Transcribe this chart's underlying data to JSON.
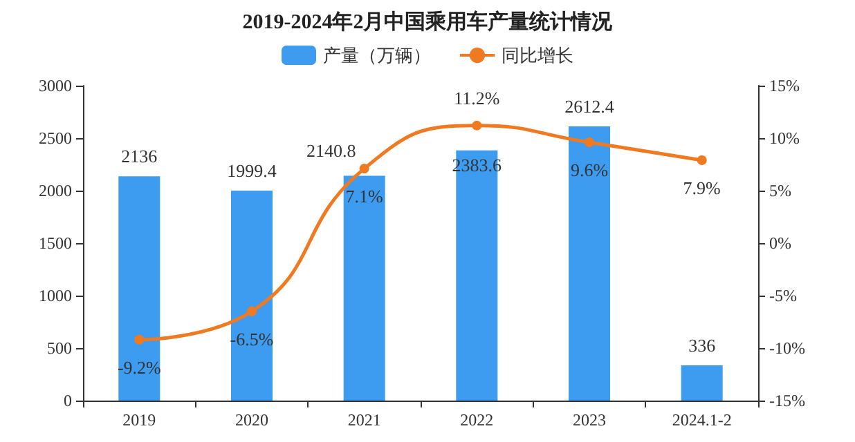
{
  "chart_data": {
    "type": "bar",
    "title": "2019-2024年2月中国乘用车产量统计情况",
    "categories": [
      "2019",
      "2020",
      "2021",
      "2022",
      "2023",
      "2024.1-2"
    ],
    "series": [
      {
        "name": "产量（万辆）",
        "color": "#3d9cf0",
        "values": [
          2136,
          1999.4,
          2140.8,
          2383.6,
          2612.4,
          336
        ],
        "value_labels": [
          "2136",
          "1999.4",
          "2140.8",
          "2383.6",
          "2612.4",
          "336"
        ]
      },
      {
        "name": "同比增长",
        "type": "line",
        "axis": "y2",
        "color": "#f07a21",
        "values": [
          -9.2,
          -6.5,
          7.1,
          11.2,
          9.6,
          7.9
        ],
        "value_labels": [
          "-9.2%",
          "-6.5%",
          "7.1%",
          "11.2%",
          "9.6%",
          "7.9%"
        ]
      }
    ],
    "ylim": [
      0,
      3000
    ],
    "yticks": [
      0,
      500,
      1000,
      1500,
      2000,
      2500,
      3000
    ],
    "y2lim": [
      -15,
      15
    ],
    "y2ticks": [
      {
        "value": -15,
        "label": "-15%"
      },
      {
        "value": -10,
        "label": "-10%"
      },
      {
        "value": -5,
        "label": "-5%"
      },
      {
        "value": 0,
        "label": "0%"
      },
      {
        "value": 5,
        "label": "5%"
      },
      {
        "value": 10,
        "label": "10%"
      },
      {
        "value": 15,
        "label": "15%"
      }
    ],
    "legend": "top",
    "grid": false,
    "marker": "circle",
    "line_style": "solid"
  }
}
